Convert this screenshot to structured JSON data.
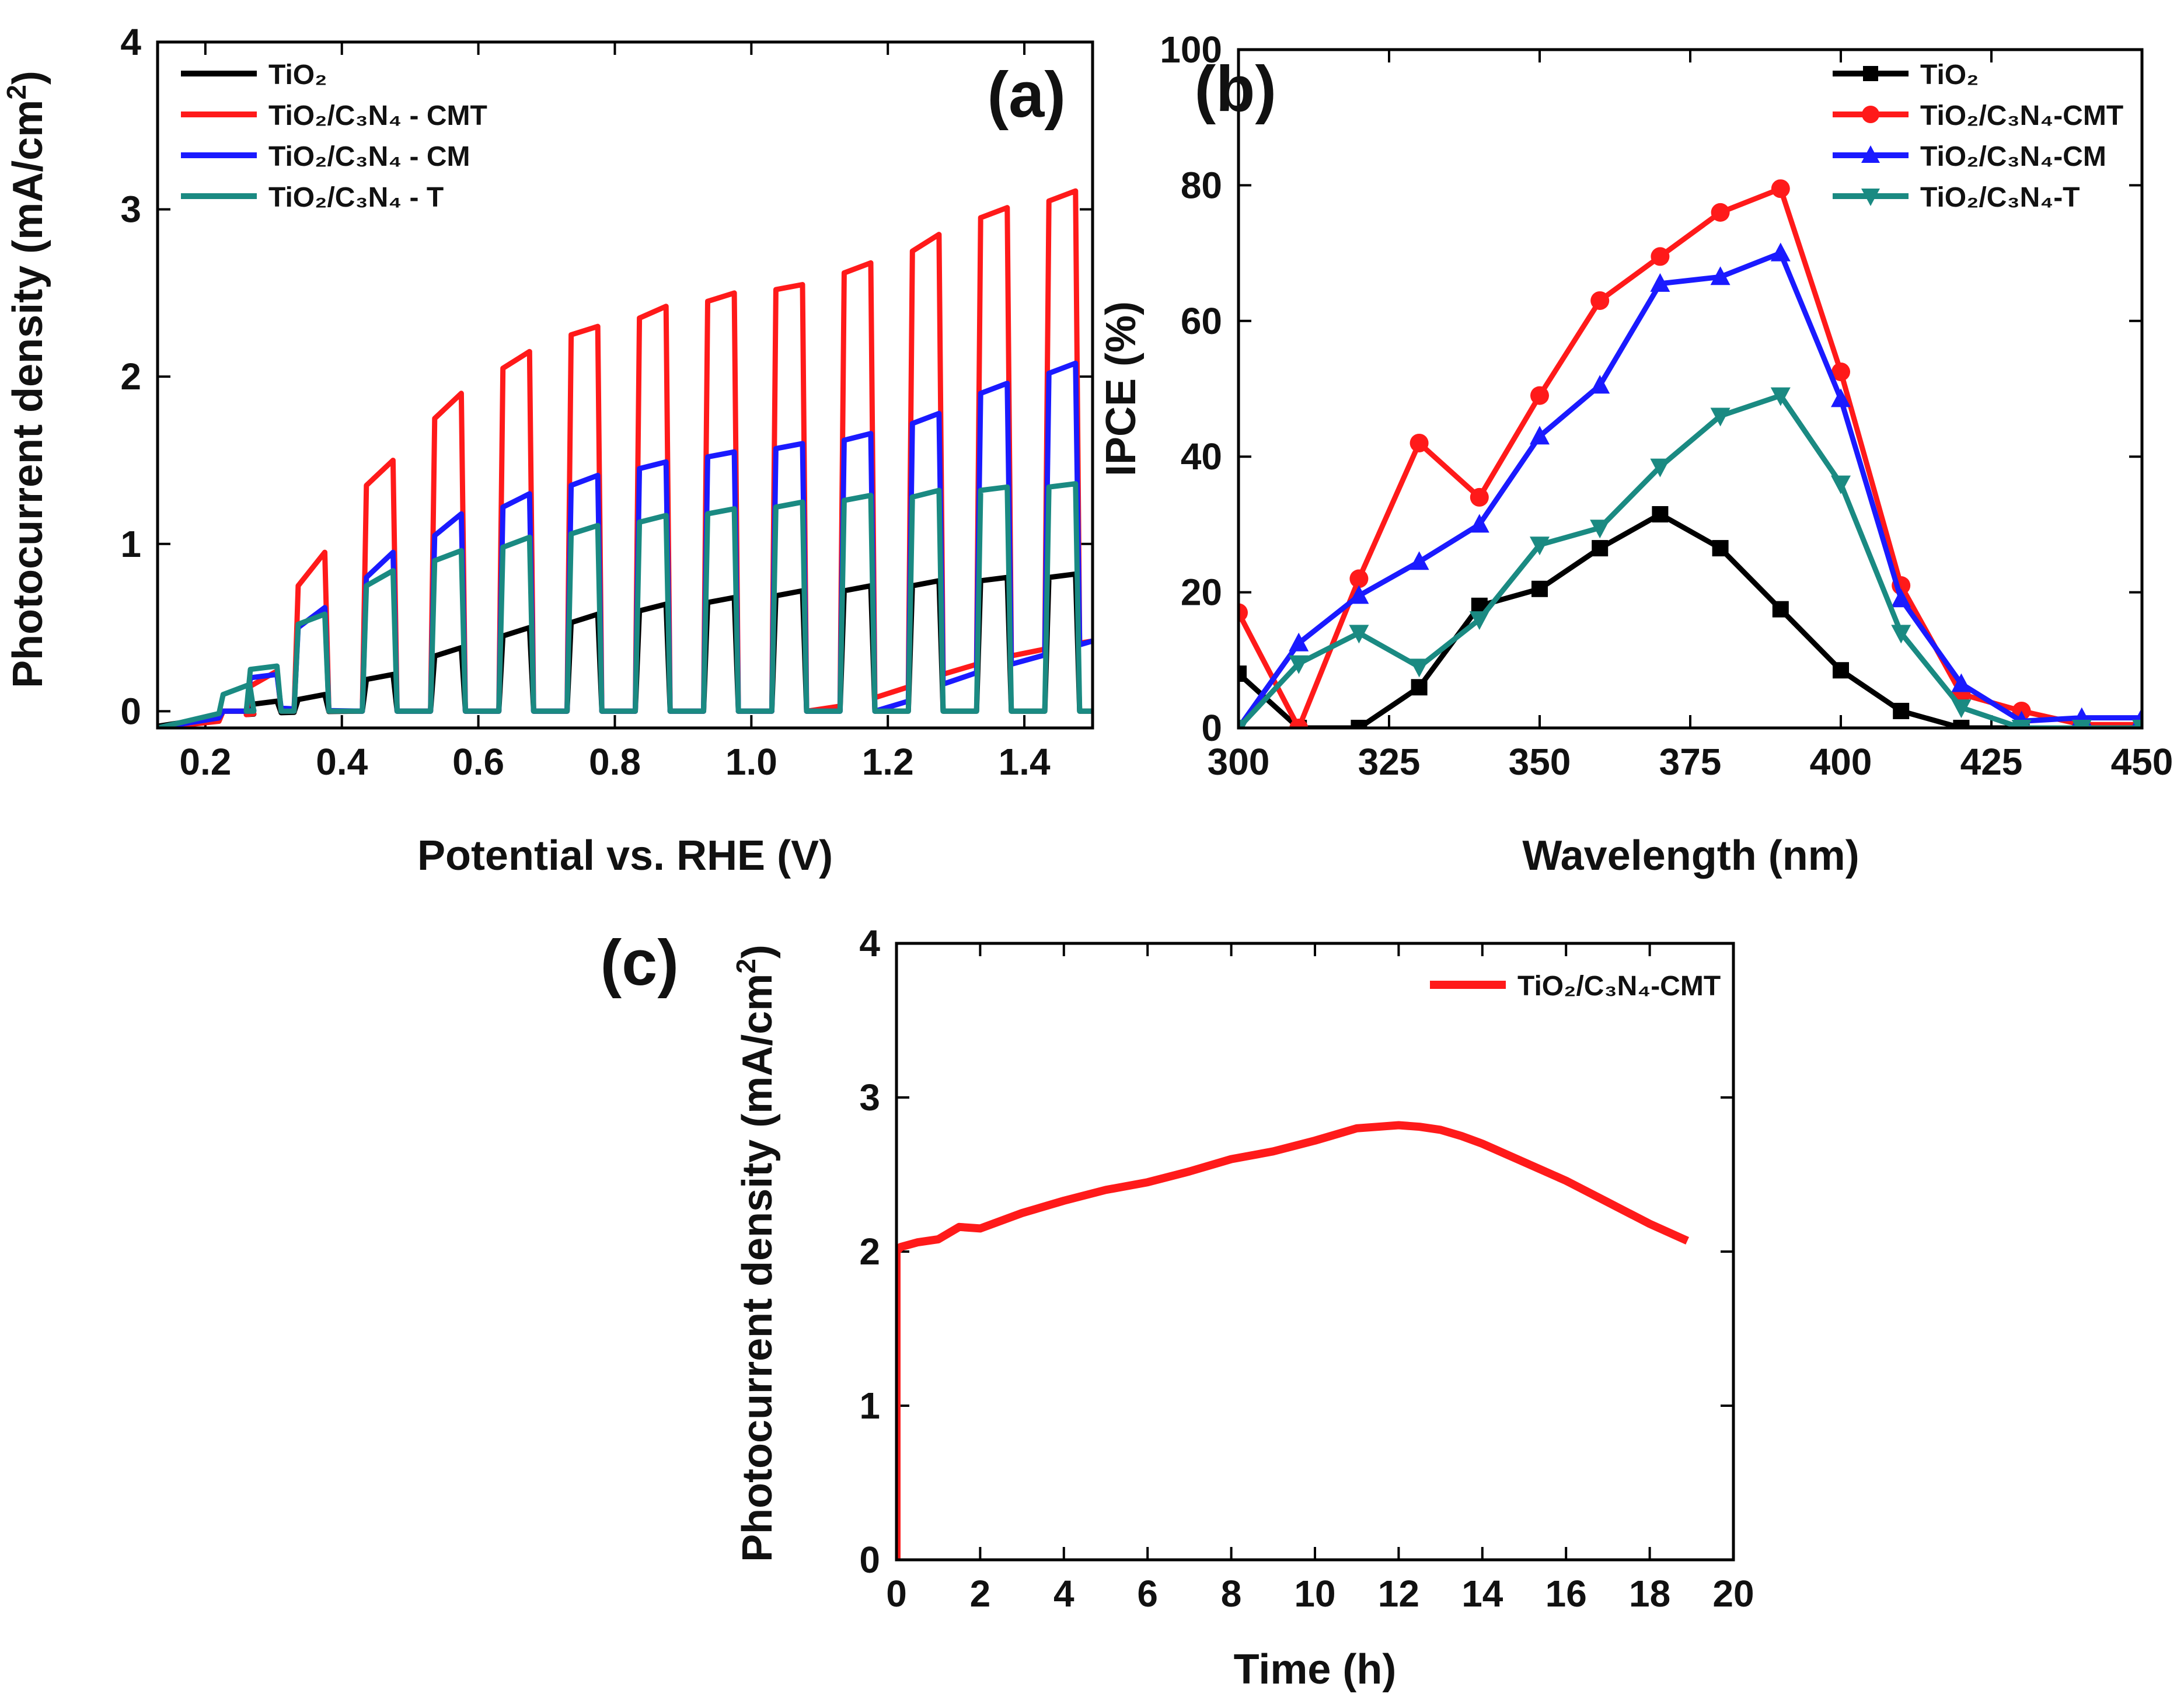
{
  "chart_data": [
    {
      "id": "a",
      "type": "line",
      "panel_label": "(a)",
      "xlabel": "Potential vs. RHE (V)",
      "ylabel": "Photocurrent density (mA/cm",
      "ylabel_sup": "2",
      "ylabel_close": ")",
      "xlim": [
        0.13,
        1.5
      ],
      "ylim": [
        -0.1,
        4
      ],
      "xticks": [
        "0.2",
        "0.4",
        "0.6",
        "0.8",
        "1.0",
        "1.2",
        "1.4"
      ],
      "yticks": [
        "0",
        "1",
        "2",
        "3",
        "4"
      ],
      "legend_position": "top-left",
      "chop": {
        "on_start": [
          0.22,
          0.26,
          0.33,
          0.43,
          0.53,
          0.63,
          0.73,
          0.83,
          0.93,
          1.03,
          1.13,
          1.23,
          1.33,
          1.43
        ],
        "width": 0.045,
        "rise": 0.006
      },
      "series": [
        {
          "name": "TiO₂",
          "color": "#000000",
          "dark": [
            [
              0.13,
              -0.09
            ],
            [
              0.2,
              -0.04
            ],
            [
              0.26,
              -0.02
            ],
            [
              0.3,
              -0.01
            ],
            [
              0.4,
              0.0
            ],
            [
              1.5,
              0.0
            ]
          ],
          "on_start_values": [
            0.0,
            0.04,
            0.07,
            0.19,
            0.33,
            0.45,
            0.53,
            0.6,
            0.65,
            0.69,
            0.72,
            0.75,
            0.78,
            0.8
          ],
          "on_end_values": [
            0.0,
            0.06,
            0.1,
            0.22,
            0.38,
            0.5,
            0.58,
            0.64,
            0.68,
            0.72,
            0.75,
            0.78,
            0.8,
            0.82
          ]
        },
        {
          "name": "TiO₂/C₃N₄ - CMT",
          "color": "#ff1a1a",
          "dark": [
            [
              0.13,
              -0.1
            ],
            [
              0.2,
              -0.08
            ],
            [
              0.26,
              -0.02
            ],
            [
              0.3,
              0.0
            ],
            [
              0.4,
              0.0
            ],
            [
              1.1,
              0.0
            ],
            [
              1.2,
              0.1
            ],
            [
              1.3,
              0.25
            ],
            [
              1.4,
              0.35
            ],
            [
              1.5,
              0.42
            ]
          ],
          "on_start_values": [
            0.0,
            0.15,
            0.75,
            1.35,
            1.75,
            2.05,
            2.25,
            2.35,
            2.45,
            2.52,
            2.62,
            2.75,
            2.95,
            3.05
          ],
          "on_end_values": [
            0.0,
            0.24,
            0.95,
            1.5,
            1.9,
            2.15,
            2.3,
            2.42,
            2.5,
            2.55,
            2.68,
            2.85,
            3.01,
            3.11
          ]
        },
        {
          "name": "TiO₂/C₃N₄ - CM",
          "color": "#1a1aff",
          "dark": [
            [
              0.13,
              -0.1
            ],
            [
              0.2,
              -0.06
            ],
            [
              0.26,
              0.0
            ],
            [
              0.3,
              0.02
            ],
            [
              0.4,
              0.0
            ],
            [
              1.2,
              0.0
            ],
            [
              1.3,
              0.2
            ],
            [
              1.4,
              0.3
            ],
            [
              1.5,
              0.42
            ]
          ],
          "on_start_values": [
            0.0,
            0.2,
            0.5,
            0.8,
            1.05,
            1.22,
            1.35,
            1.45,
            1.52,
            1.57,
            1.62,
            1.72,
            1.9,
            2.02
          ],
          "on_end_values": [
            0.0,
            0.22,
            0.62,
            0.95,
            1.18,
            1.3,
            1.41,
            1.49,
            1.55,
            1.6,
            1.66,
            1.78,
            1.96,
            2.08
          ]
        },
        {
          "name": "TiO₂/C₃N₄ - T",
          "color": "#1a8a82",
          "dark": [
            [
              0.13,
              -0.1
            ],
            [
              0.2,
              -0.02
            ],
            [
              0.26,
              0.0
            ],
            [
              1.5,
              0.0
            ]
          ],
          "on_start_values": [
            0.1,
            0.25,
            0.52,
            0.75,
            0.9,
            0.98,
            1.06,
            1.13,
            1.18,
            1.22,
            1.26,
            1.28,
            1.32,
            1.34
          ],
          "on_end_values": [
            0.16,
            0.27,
            0.58,
            0.84,
            0.96,
            1.04,
            1.11,
            1.17,
            1.21,
            1.25,
            1.29,
            1.32,
            1.34,
            1.36
          ]
        }
      ]
    },
    {
      "id": "b",
      "type": "line",
      "panel_label": "(b)",
      "xlabel": "Wavelength (nm)",
      "ylabel": "IPCE (%)",
      "xlim": [
        300,
        450
      ],
      "ylim": [
        0,
        100
      ],
      "xticks": [
        "300",
        "325",
        "350",
        "375",
        "400",
        "425",
        "450"
      ],
      "yticks": [
        "0",
        "20",
        "40",
        "60",
        "80",
        "100"
      ],
      "legend_position": "top-right",
      "x": [
        300,
        310,
        320,
        330,
        340,
        350,
        360,
        370,
        380,
        390,
        400,
        410,
        420,
        430,
        440,
        450
      ],
      "series": [
        {
          "name": "TiO₂",
          "color": "#000000",
          "marker": "square",
          "values": [
            8,
            0,
            0,
            6,
            18,
            20.5,
            26.5,
            31.5,
            26.5,
            17.5,
            8.5,
            2.5,
            0,
            0,
            0,
            0
          ]
        },
        {
          "name": "TiO₂/C₃N₄-CMT",
          "color": "#ff1a1a",
          "marker": "circle",
          "values": [
            17,
            0,
            22,
            42,
            34,
            49,
            63,
            69.5,
            76,
            79.5,
            52.5,
            21,
            5,
            2.5,
            0.5,
            0.5
          ]
        },
        {
          "name": "TiO₂/C₃N₄-CM",
          "color": "#1a1aff",
          "marker": "triangle-up",
          "values": [
            0,
            12.5,
            19.5,
            24.5,
            30,
            43,
            50.5,
            65.5,
            66.5,
            70,
            48.5,
            19,
            6.5,
            1,
            1.5,
            1.5
          ]
        },
        {
          "name": "TiO₂/C₃N₄-T",
          "color": "#1a8a82",
          "marker": "triangle-down",
          "values": [
            0,
            9.5,
            14,
            9,
            16,
            27,
            29.5,
            38.5,
            46,
            49,
            36,
            14,
            3,
            0,
            0,
            0
          ]
        }
      ]
    },
    {
      "id": "c",
      "type": "line",
      "panel_label": "(c)",
      "xlabel": "Time (h)",
      "ylabel": "Photocurrent density (mA/cm",
      "ylabel_sup": "2",
      "ylabel_close": ")",
      "xlim": [
        0,
        20
      ],
      "ylim": [
        0,
        4
      ],
      "xticks": [
        "0",
        "2",
        "4",
        "6",
        "8",
        "10",
        "12",
        "14",
        "16",
        "18",
        "20"
      ],
      "yticks": [
        "0",
        "1",
        "2",
        "3",
        "4"
      ],
      "legend_position": "top-right",
      "series": [
        {
          "name": "TiO₂/C₃N₄-CMT",
          "color": "#ff1a1a",
          "x": [
            0,
            0,
            0.1,
            0.5,
            1,
            1.5,
            2,
            3,
            4,
            5,
            6,
            7,
            8,
            9,
            10,
            10.5,
            11,
            11.5,
            12,
            12.5,
            13,
            13.5,
            14,
            15,
            16,
            17,
            18,
            18.9
          ],
          "values": [
            0,
            2.0,
            2.03,
            2.06,
            2.08,
            2.16,
            2.15,
            2.25,
            2.33,
            2.4,
            2.45,
            2.52,
            2.6,
            2.65,
            2.72,
            2.76,
            2.8,
            2.81,
            2.82,
            2.81,
            2.79,
            2.75,
            2.7,
            2.58,
            2.46,
            2.32,
            2.18,
            2.07
          ]
        }
      ]
    }
  ]
}
